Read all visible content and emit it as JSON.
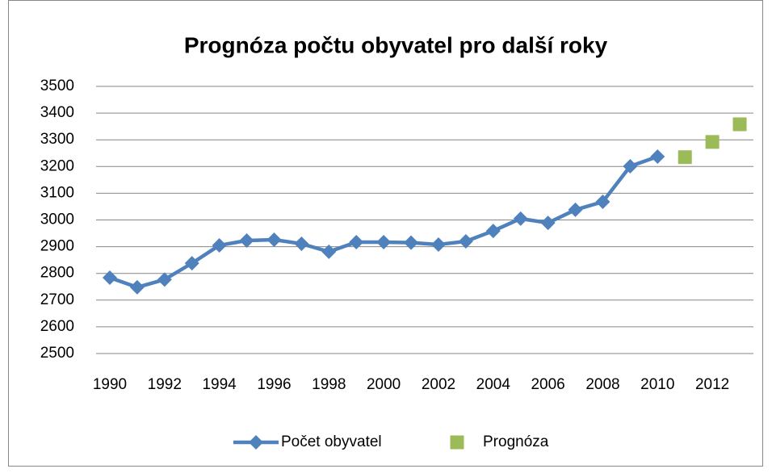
{
  "chart_data": {
    "type": "line",
    "title": "Prognóza počtu obyvatel pro další roky",
    "xlim": [
      1989.5,
      2013.5
    ],
    "xticks": [
      1990,
      1992,
      1994,
      1996,
      1998,
      2000,
      2002,
      2004,
      2006,
      2008,
      2010,
      2012
    ],
    "ylim": [
      2500,
      3500
    ],
    "yticks": [
      2500,
      2600,
      2700,
      2800,
      2900,
      3000,
      3100,
      3200,
      3300,
      3400,
      3500
    ],
    "grid": true,
    "legend": "bottom",
    "series": [
      {
        "name": "Počet obyvatel",
        "type": "line",
        "marker": "diamond",
        "color": "#4f81bd",
        "x": [
          1990,
          1991,
          1992,
          1993,
          1994,
          1995,
          1996,
          1997,
          1998,
          1999,
          2000,
          2001,
          2002,
          2003,
          2004,
          2005,
          2006,
          2007,
          2008,
          2009,
          2010
        ],
        "values": [
          2784,
          2748,
          2777,
          2838,
          2905,
          2923,
          2926,
          2911,
          2881,
          2917,
          2917,
          2915,
          2908,
          2920,
          2959,
          3005,
          2989,
          3038,
          3068,
          3201,
          3237
        ]
      },
      {
        "name": "Prognóza",
        "type": "scatter",
        "marker": "square",
        "color": "#9bbb59",
        "x": [
          2011,
          2012,
          2013
        ],
        "values": [
          3235,
          3292,
          3358
        ]
      }
    ]
  }
}
